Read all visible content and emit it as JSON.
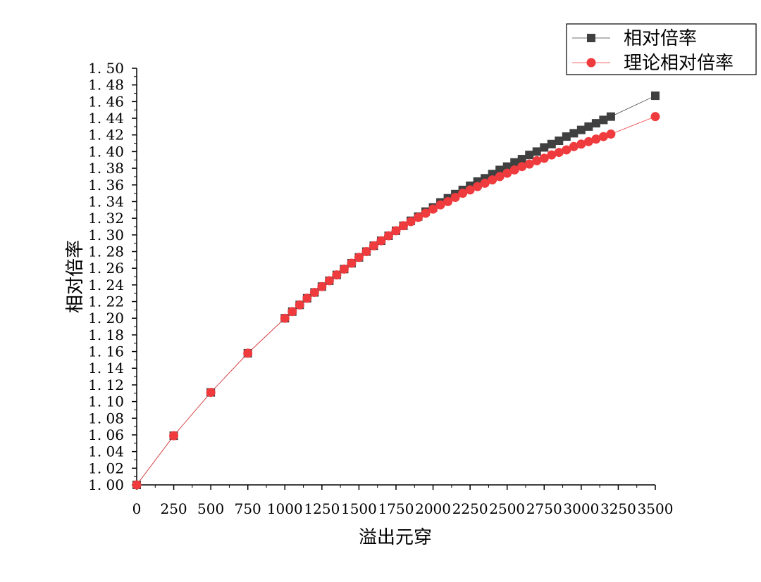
{
  "chart_data": {
    "type": "line",
    "xlabel": "溢出元穿",
    "ylabel": "相对倍率",
    "xlim": [
      0,
      3500
    ],
    "ylim": [
      1.0,
      1.5
    ],
    "xticks": [
      0,
      250,
      500,
      750,
      1000,
      1250,
      1500,
      1750,
      2000,
      2250,
      2500,
      2750,
      3000,
      3250,
      3500
    ],
    "yticks": [
      1.0,
      1.02,
      1.04,
      1.06,
      1.08,
      1.1,
      1.12,
      1.14,
      1.16,
      1.18,
      1.2,
      1.22,
      1.24,
      1.26,
      1.28,
      1.3,
      1.32,
      1.34,
      1.36,
      1.38,
      1.4,
      1.42,
      1.44,
      1.46,
      1.48,
      1.5
    ],
    "xtick_labels": [
      "0",
      "250",
      "500",
      "750",
      "1000",
      "1250",
      "1500",
      "1750",
      "2000",
      "2250",
      "2500",
      "2750",
      "3000",
      "3250",
      "3500"
    ],
    "ytick_labels": [
      "1. 00",
      "1. 02",
      "1. 04",
      "1. 06",
      "1. 08",
      "1. 10",
      "1. 12",
      "1. 14",
      "1. 16",
      "1. 18",
      "1. 20",
      "1. 22",
      "1. 24",
      "1. 26",
      "1. 28",
      "1. 30",
      "1. 32",
      "1. 34",
      "1. 36",
      "1. 38",
      "1. 40",
      "1. 42",
      "1. 44",
      "1. 46",
      "1. 48",
      "1. 50"
    ],
    "grid": false,
    "legend_position": "top-right",
    "x": [
      0,
      250,
      500,
      750,
      1000,
      1050,
      1100,
      1150,
      1200,
      1250,
      1300,
      1350,
      1400,
      1450,
      1500,
      1550,
      1600,
      1650,
      1700,
      1750,
      1800,
      1850,
      1900,
      1950,
      2000,
      2050,
      2100,
      2150,
      2200,
      2250,
      2300,
      2350,
      2400,
      2450,
      2500,
      2550,
      2600,
      2650,
      2700,
      2750,
      2800,
      2850,
      2900,
      2950,
      3000,
      3050,
      3100,
      3150,
      3200,
      3500
    ],
    "series": [
      {
        "name": "相对倍率",
        "color": "#404040",
        "marker": "square",
        "values": [
          1.0,
          1.059,
          1.111,
          1.158,
          1.2,
          1.208,
          1.216,
          1.224,
          1.231,
          1.238,
          1.245,
          1.252,
          1.259,
          1.266,
          1.273,
          1.28,
          1.287,
          1.293,
          1.299,
          1.305,
          1.311,
          1.317,
          1.322,
          1.328,
          1.333,
          1.339,
          1.344,
          1.349,
          1.354,
          1.359,
          1.364,
          1.368,
          1.373,
          1.378,
          1.382,
          1.387,
          1.391,
          1.396,
          1.4,
          1.405,
          1.409,
          1.413,
          1.418,
          1.422,
          1.426,
          1.43,
          1.434,
          1.438,
          1.442,
          1.467
        ]
      },
      {
        "name": "理论相对倍率",
        "color": "#ef3b3e",
        "marker": "circle",
        "values": [
          1.0,
          1.059,
          1.111,
          1.158,
          1.2,
          1.208,
          1.216,
          1.224,
          1.231,
          1.238,
          1.245,
          1.252,
          1.259,
          1.266,
          1.273,
          1.28,
          1.287,
          1.293,
          1.299,
          1.305,
          1.311,
          1.316,
          1.321,
          1.326,
          1.331,
          1.336,
          1.34,
          1.345,
          1.35,
          1.354,
          1.358,
          1.362,
          1.366,
          1.37,
          1.374,
          1.378,
          1.382,
          1.385,
          1.389,
          1.392,
          1.396,
          1.399,
          1.402,
          1.406,
          1.409,
          1.412,
          1.415,
          1.418,
          1.421,
          1.442
        ]
      }
    ]
  }
}
